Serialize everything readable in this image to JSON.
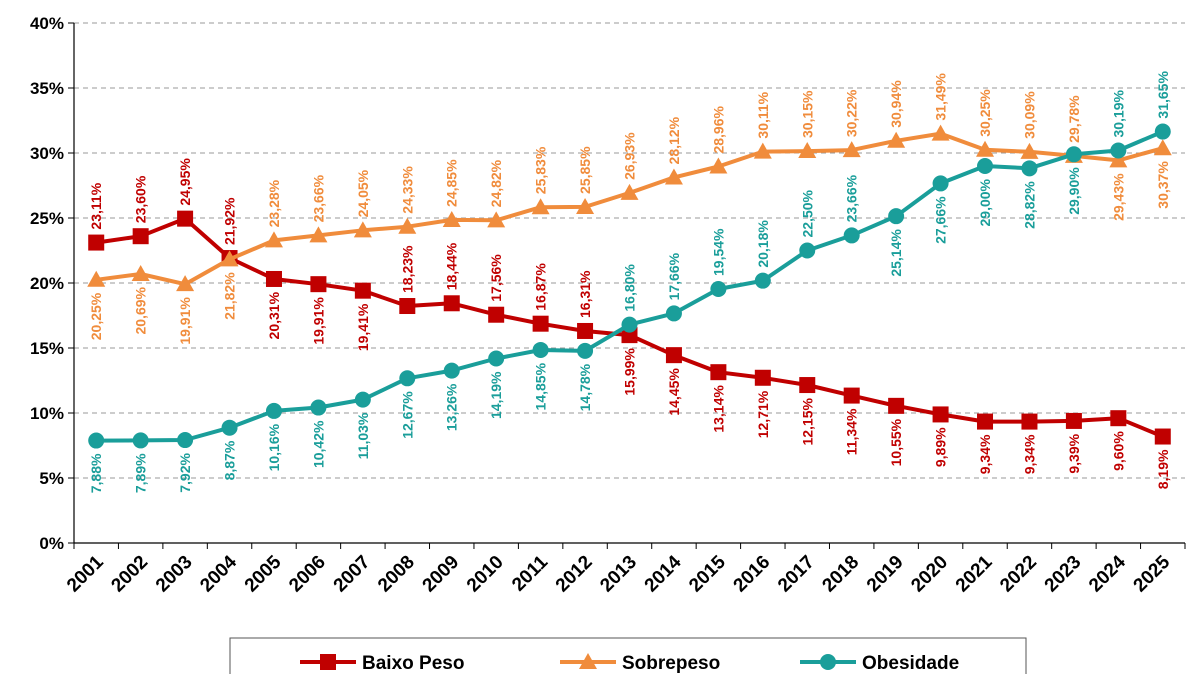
{
  "chart_data": {
    "type": "line",
    "title": "",
    "xlabel": "",
    "ylabel": "",
    "categories": [
      "2001",
      "2002",
      "2003",
      "2004",
      "2005",
      "2006",
      "2007",
      "2008",
      "2009",
      "2010",
      "2011",
      "2012",
      "2013",
      "2014",
      "2015",
      "2016",
      "2017",
      "2018",
      "2019",
      "2020",
      "2021",
      "2022",
      "2023",
      "2024",
      "2025"
    ],
    "ylim": [
      0,
      40
    ],
    "y_ticks": [
      "0%",
      "5%",
      "10%",
      "15%",
      "20%",
      "25%",
      "30%",
      "35%",
      "40%"
    ],
    "grid": "horizontal dashed",
    "legend_position": "bottom",
    "series": [
      {
        "name": "Baixo Peso",
        "color": "#C00000",
        "marker": "square",
        "values": [
          23.11,
          23.6,
          24.95,
          21.92,
          20.31,
          19.91,
          19.41,
          18.23,
          18.44,
          17.56,
          16.87,
          16.31,
          15.99,
          14.45,
          13.14,
          12.71,
          12.15,
          11.34,
          10.55,
          9.89,
          9.34,
          9.34,
          9.39,
          9.6,
          8.19
        ],
        "labels": [
          "23,11%",
          "23,60%",
          "24,95%",
          "21,92%",
          "20,31%",
          "19,91%",
          "19,41%",
          "18,23%",
          "18,44%",
          "17,56%",
          "16,87%",
          "16,31%",
          "15,99%",
          "14,45%",
          "13,14%",
          "12,71%",
          "12,15%",
          "11,34%",
          "10,55%",
          "9,89%",
          "9,34%",
          "9,34%",
          "9,39%",
          "9,60%",
          "8,19%"
        ],
        "label_side": [
          "above",
          "above",
          "above",
          "above",
          "below",
          "below",
          "below",
          "above",
          "above",
          "above",
          "above",
          "above",
          "below",
          "below",
          "below",
          "below",
          "below",
          "below",
          "below",
          "below",
          "below",
          "below",
          "below",
          "below",
          "below"
        ]
      },
      {
        "name": "Sobrepeso",
        "color": "#F08C3C",
        "marker": "triangle",
        "values": [
          20.25,
          20.69,
          19.91,
          21.82,
          23.28,
          23.66,
          24.05,
          24.33,
          24.85,
          24.82,
          25.83,
          25.85,
          26.93,
          28.12,
          28.96,
          30.11,
          30.15,
          30.22,
          30.94,
          31.49,
          30.25,
          30.09,
          29.78,
          29.43,
          30.37
        ],
        "labels": [
          "20,25%",
          "20,69%",
          "19,91%",
          "21,82%",
          "23,28%",
          "23,66%",
          "24,05%",
          "24,33%",
          "24,85%",
          "24,82%",
          "25,83%",
          "25,85%",
          "26,93%",
          "28,12%",
          "28,96%",
          "30,11%",
          "30,15%",
          "30,22%",
          "30,94%",
          "31,49%",
          "30,25%",
          "30,09%",
          "29,78%",
          "29,43%",
          "30,37%"
        ],
        "label_side": [
          "below",
          "below",
          "below",
          "below",
          "above",
          "above",
          "above",
          "above",
          "above",
          "above",
          "above",
          "above",
          "above",
          "above",
          "above",
          "above",
          "above",
          "above",
          "above",
          "above",
          "above",
          "above",
          "above",
          "below",
          "below"
        ]
      },
      {
        "name": "Obesidade",
        "color": "#1A9E9A",
        "marker": "circle",
        "values": [
          7.88,
          7.89,
          7.92,
          8.87,
          10.16,
          10.42,
          11.03,
          12.67,
          13.26,
          14.19,
          14.85,
          14.78,
          16.8,
          17.66,
          19.54,
          20.18,
          22.5,
          23.66,
          25.14,
          27.66,
          29.0,
          28.82,
          29.9,
          30.19,
          31.65
        ],
        "labels": [
          "7,88%",
          "7,89%",
          "7,92%",
          "8,87%",
          "10,16%",
          "10,42%",
          "11,03%",
          "12,67%",
          "13,26%",
          "14,19%",
          "14,85%",
          "14,78%",
          "16,80%",
          "17,66%",
          "19,54%",
          "20,18%",
          "22,50%",
          "23,66%",
          "25,14%",
          "27,66%",
          "29,00%",
          "28,82%",
          "29,90%",
          "30,19%",
          "31,65%"
        ],
        "label_side": [
          "below",
          "below",
          "below",
          "below",
          "below",
          "below",
          "below",
          "below",
          "below",
          "below",
          "below",
          "below",
          "above",
          "above",
          "above",
          "above",
          "above",
          "above",
          "below",
          "below",
          "below",
          "below",
          "below",
          "above",
          "above"
        ]
      }
    ]
  }
}
